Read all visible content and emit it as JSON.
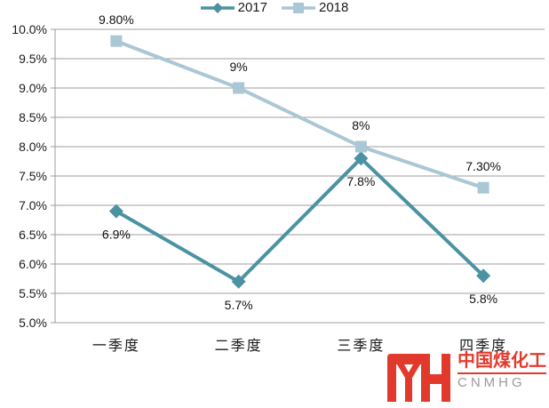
{
  "chart_data": {
    "type": "line",
    "categories": [
      "一季度",
      "二季度",
      "三季度",
      "四季度"
    ],
    "series": [
      {
        "name": "2017",
        "values": [
          6.9,
          5.7,
          7.8,
          5.8
        ],
        "labels": [
          "6.9%",
          "5.7%",
          "7.8%",
          "5.8%"
        ],
        "color": "#4b92a2",
        "marker": "diamond",
        "label_position": "below"
      },
      {
        "name": "2018",
        "values": [
          9.8,
          9.0,
          8.0,
          7.3
        ],
        "labels": [
          "9.80%",
          "9%",
          "8%",
          "7.30%"
        ],
        "color": "#a9c7d4",
        "marker": "square",
        "label_position": "above"
      }
    ],
    "title": "",
    "xlabel": "",
    "ylabel": "",
    "ylim": [
      5.0,
      10.0
    ],
    "y_tick_values": [
      10.0,
      9.5,
      9.0,
      8.5,
      8.0,
      7.5,
      7.0,
      6.5,
      6.0,
      5.5,
      5.0
    ],
    "y_ticks": [
      "10.0%",
      "9.5%",
      "9.0%",
      "8.5%",
      "8.0%",
      "7.5%",
      "7.0%",
      "6.5%",
      "6.0%",
      "5.5%",
      "5.0%"
    ],
    "grid": true,
    "grid_color": "#9c9c9c",
    "legend_position": "bottom"
  },
  "watermark": {
    "cn": "中国煤化工",
    "en": "CNMHG",
    "red": "#e13a2d",
    "gray": "#9b9b9b"
  }
}
